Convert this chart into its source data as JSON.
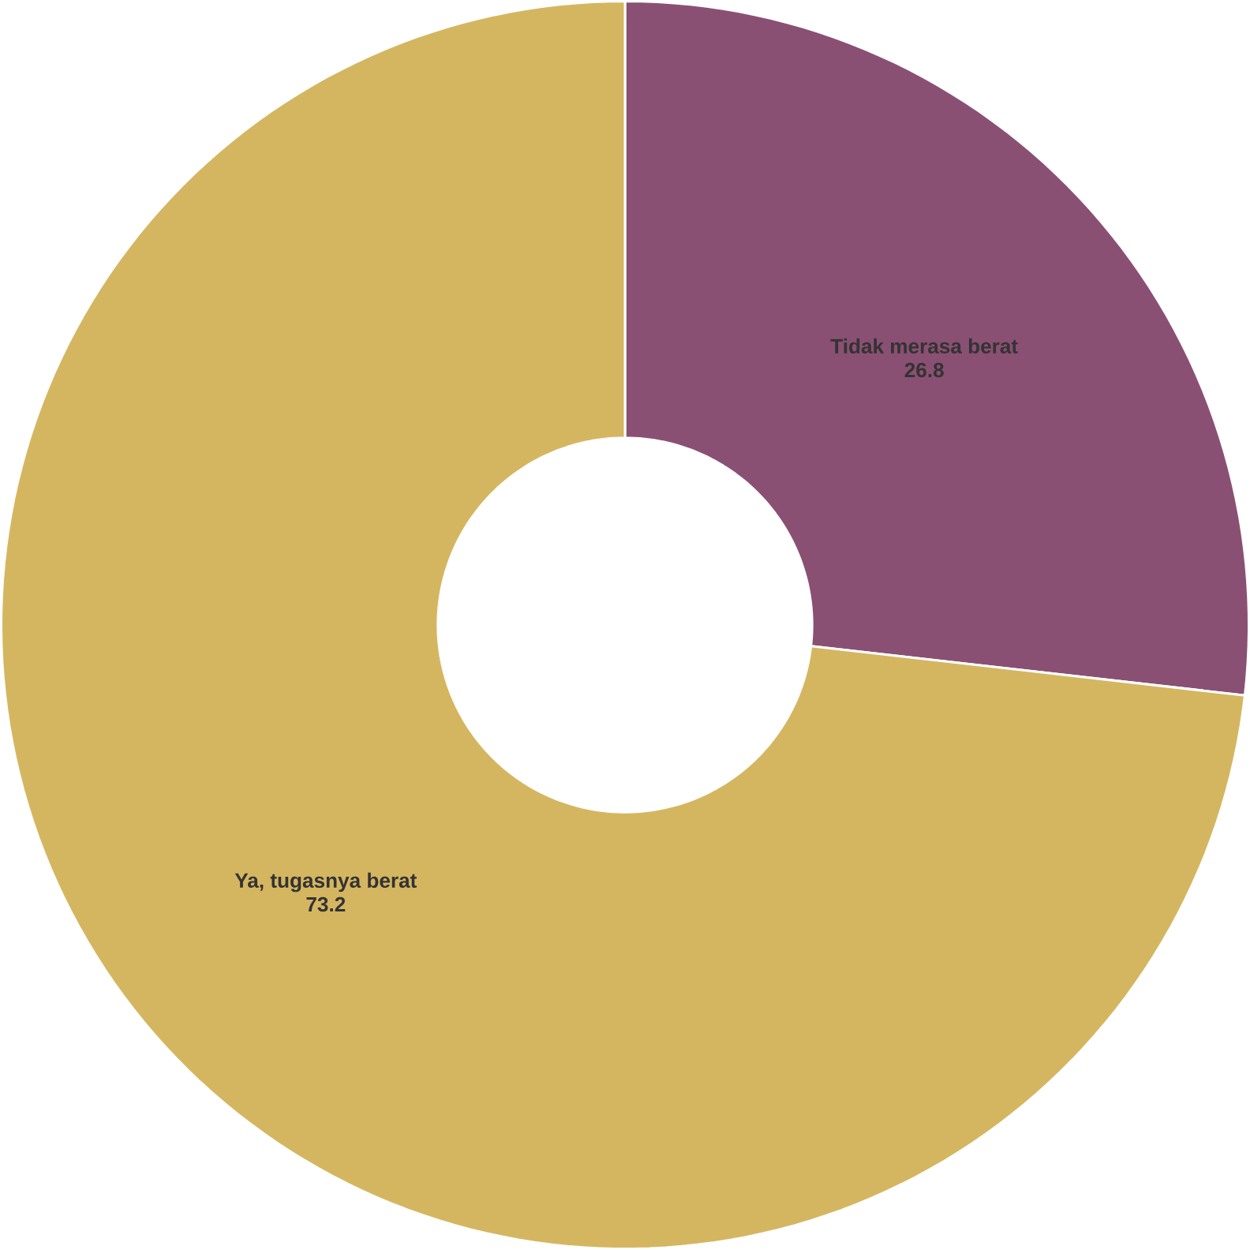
{
  "chart_data": {
    "type": "donut",
    "categories": [
      "Tidak merasa berat",
      "Ya, tugasnya berat"
    ],
    "values": [
      26.8,
      73.2
    ],
    "colors": [
      "#8a5073",
      "#d5b660"
    ],
    "data_labels": true
  }
}
